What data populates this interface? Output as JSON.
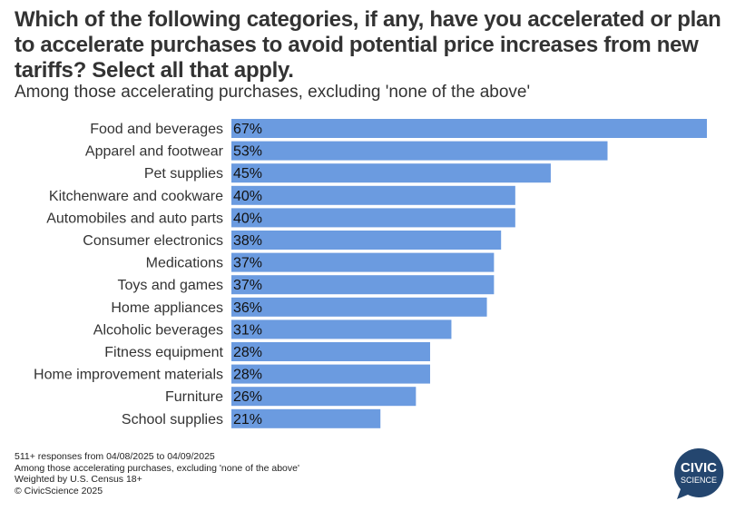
{
  "chart_data": {
    "type": "bar",
    "orientation": "horizontal",
    "title": "Which of the following categories, if any, have you accelerated or plan to accelerate purchases to avoid potential price increases from new tariffs? Select all that apply.",
    "subtitle": "Among those accelerating purchases, excluding 'none of the above'",
    "categories": [
      "Food and beverages",
      "Apparel and footwear",
      "Pet supplies",
      "Kitchenware and cookware",
      "Automobiles and auto parts",
      "Consumer electronics",
      "Medications",
      "Toys and games",
      "Home appliances",
      "Alcoholic beverages",
      "Fitness equipment",
      "Home improvement materials",
      "Furniture",
      "School supplies"
    ],
    "values": [
      67,
      53,
      45,
      40,
      40,
      38,
      37,
      37,
      36,
      31,
      28,
      28,
      26,
      21
    ],
    "value_suffix": "%",
    "xlim": [
      0,
      67
    ],
    "grid": false,
    "bar_color": "#6b9be0"
  },
  "notes": [
    "511+ responses from 04/08/2025 to 04/09/2025",
    "Among those accelerating purchases, excluding 'none of the above'",
    "Weighted by U.S. Census 18+",
    "© CivicScience 2025"
  ],
  "logo": {
    "line1": "CIVIC",
    "line2": "SCIENCE",
    "color": "#24466f"
  }
}
